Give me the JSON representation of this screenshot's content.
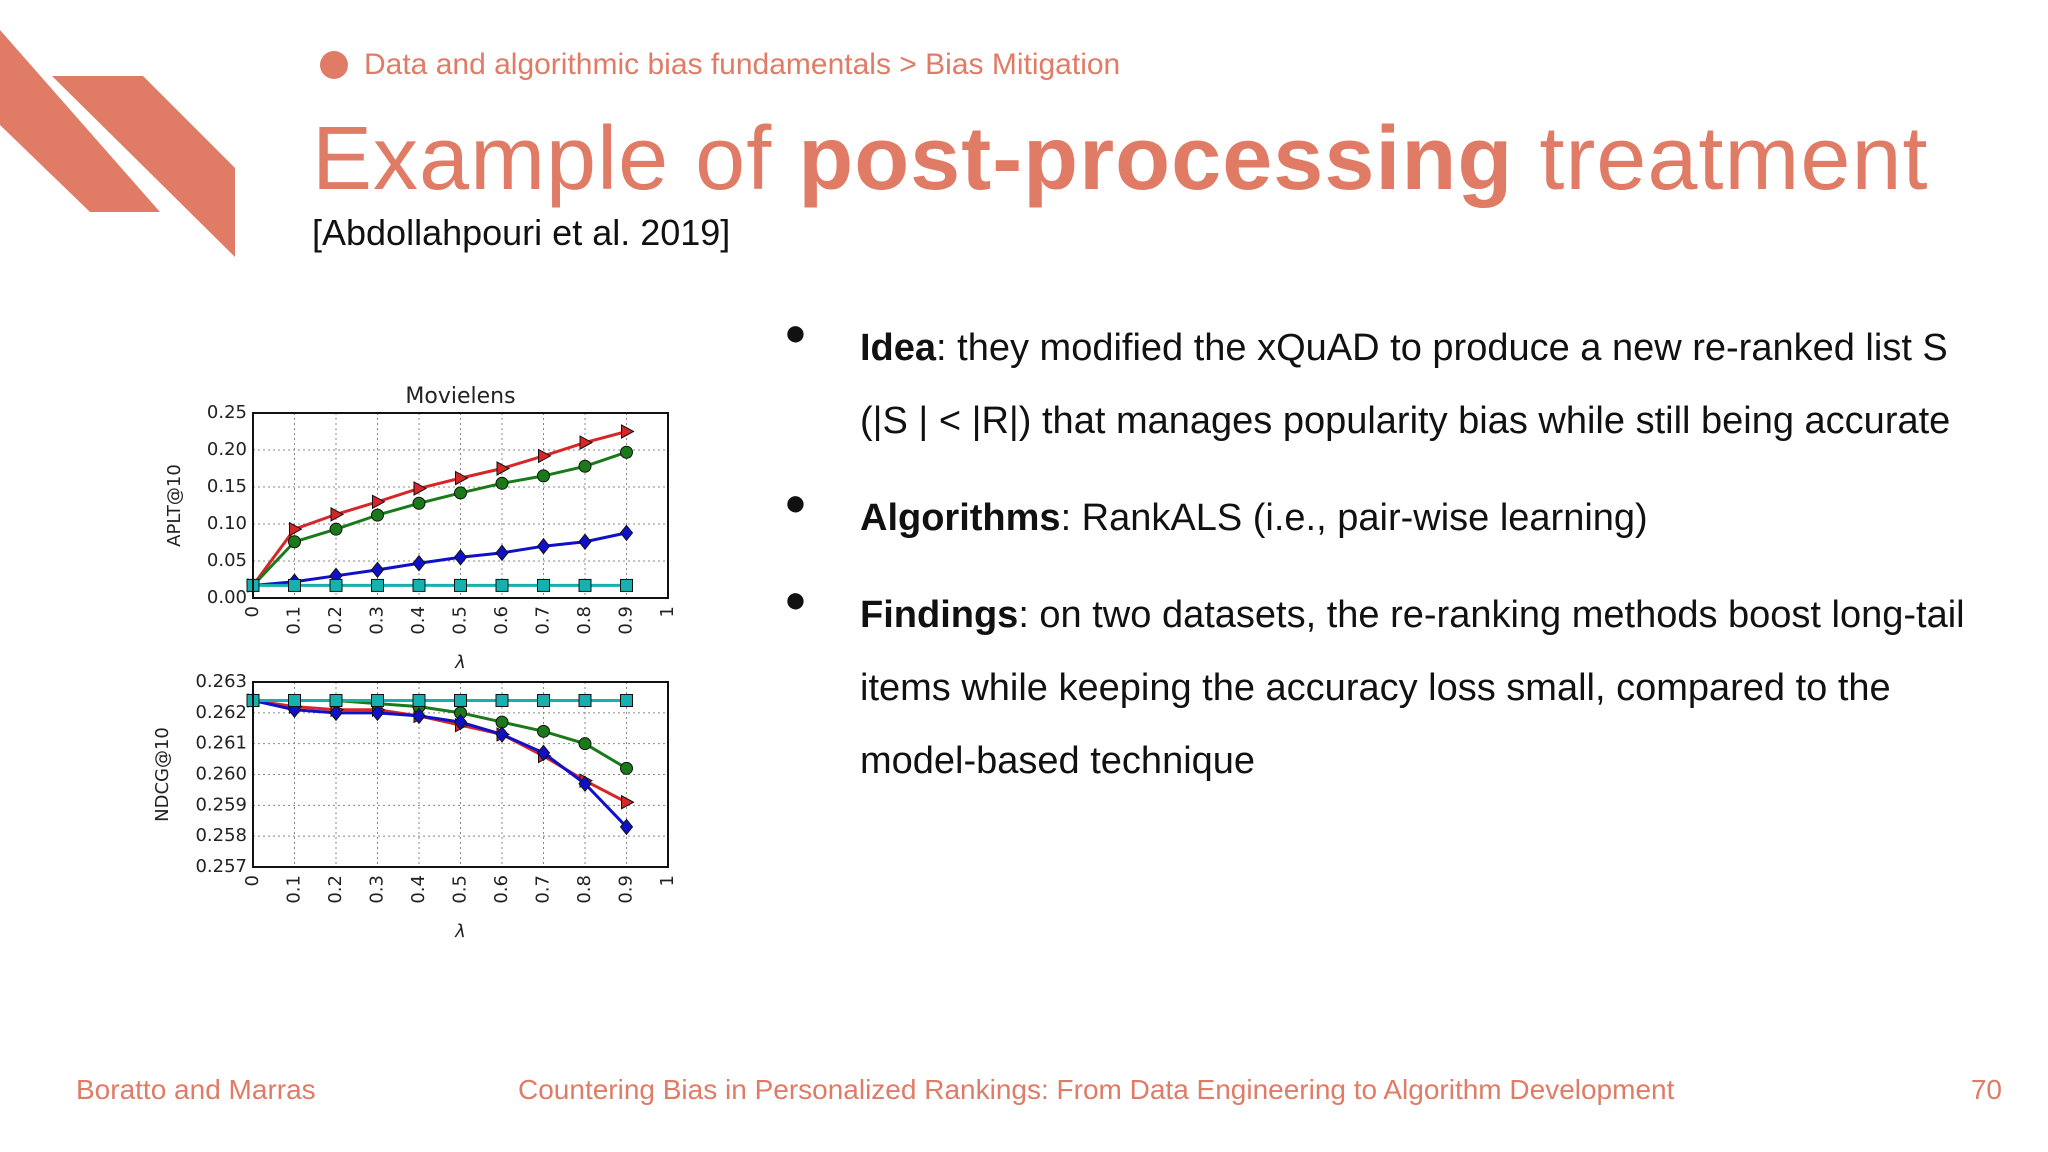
{
  "breadcrumb": "Data and algorithmic bias fundamentals > Bias Mitigation",
  "title": {
    "pre": "Example of ",
    "bold": "post-processing",
    "post": " treatment"
  },
  "citation": "[Abdollahpouri et al. 2019]",
  "bullets": [
    {
      "term": "Idea",
      "text": ": they modified the xQuAD to produce a new re-ranked list S (|S | < |R|) that manages popularity bias while still being accurate"
    },
    {
      "term": "Algorithms",
      "text": ": RankALS (i.e., pair-wise learning)"
    },
    {
      "term": "Findings",
      "text": ": on two datasets, the re-ranking methods boost long-tail items while keeping the accuracy loss small, compared to the model-based technique"
    }
  ],
  "bullet_mark": "●",
  "footer": {
    "authors": "Boratto and Marras",
    "course": "Countering Bias in Personalized Rankings: From Data Engineering to Algorithm Development",
    "page": "70"
  },
  "colors": {
    "accent": "#e07b66",
    "red": "#d62728",
    "green": "#1a7a1a",
    "blue": "#1010c8",
    "cyan": "#17b0b0"
  },
  "chart_data": [
    {
      "type": "line",
      "title": "Movielens",
      "xlabel": "λ",
      "ylabel": "APLT@10",
      "x": [
        0,
        0.1,
        0.2,
        0.3,
        0.4,
        0.5,
        0.6,
        0.7,
        0.8,
        0.9
      ],
      "xticks": [
        "0",
        "0.1",
        "0.2",
        "0.3",
        "0.4",
        "0.5",
        "0.6",
        "0.7",
        "0.8",
        "0.9",
        "1"
      ],
      "xlim": [
        0,
        1
      ],
      "yticks": [
        "0.00",
        "0.05",
        "0.10",
        "0.15",
        "0.20",
        "0.25"
      ],
      "ylim": [
        0,
        0.25
      ],
      "grid": true,
      "series": [
        {
          "marker": "triangle",
          "color": "#d62728",
          "values": [
            0.017,
            0.093,
            0.113,
            0.13,
            0.148,
            0.162,
            0.175,
            0.192,
            0.21,
            0.225
          ]
        },
        {
          "marker": "circle",
          "color": "#1a7a1a",
          "values": [
            0.017,
            0.076,
            0.093,
            0.112,
            0.128,
            0.142,
            0.155,
            0.165,
            0.178,
            0.197
          ]
        },
        {
          "marker": "diamond",
          "color": "#1010c8",
          "values": [
            0.017,
            0.022,
            0.03,
            0.038,
            0.047,
            0.055,
            0.061,
            0.07,
            0.076,
            0.088
          ]
        },
        {
          "marker": "square",
          "color": "#17b0b0",
          "values": [
            0.017,
            0.017,
            0.017,
            0.017,
            0.017,
            0.017,
            0.017,
            0.017,
            0.017,
            0.017
          ]
        }
      ]
    },
    {
      "type": "line",
      "title": "",
      "xlabel": "λ",
      "ylabel": "NDCG@10",
      "x": [
        0,
        0.1,
        0.2,
        0.3,
        0.4,
        0.5,
        0.6,
        0.7,
        0.8,
        0.9
      ],
      "xticks": [
        "0",
        "0.1",
        "0.2",
        "0.3",
        "0.4",
        "0.5",
        "0.6",
        "0.7",
        "0.8",
        "0.9",
        "1"
      ],
      "xlim": [
        0,
        1
      ],
      "yticks": [
        "0.257",
        "0.258",
        "0.259",
        "0.260",
        "0.261",
        "0.262",
        "0.263"
      ],
      "ylim": [
        0.257,
        0.263
      ],
      "grid": true,
      "series": [
        {
          "marker": "triangle",
          "color": "#d62728",
          "values": [
            0.2624,
            0.2622,
            0.2621,
            0.2621,
            0.2619,
            0.2616,
            0.2613,
            0.2606,
            0.2598,
            0.2591
          ]
        },
        {
          "marker": "circle",
          "color": "#1a7a1a",
          "values": [
            0.2624,
            0.2624,
            0.2624,
            0.2623,
            0.2622,
            0.262,
            0.2617,
            0.2614,
            0.261,
            0.2602
          ]
        },
        {
          "marker": "diamond",
          "color": "#1010c8",
          "values": [
            0.2624,
            0.2621,
            0.262,
            0.262,
            0.2619,
            0.2617,
            0.2613,
            0.2607,
            0.2597,
            0.2583
          ]
        },
        {
          "marker": "square",
          "color": "#17b0b0",
          "values": [
            0.2624,
            0.2624,
            0.2624,
            0.2624,
            0.2624,
            0.2624,
            0.2624,
            0.2624,
            0.2624,
            0.2624
          ]
        }
      ]
    }
  ]
}
